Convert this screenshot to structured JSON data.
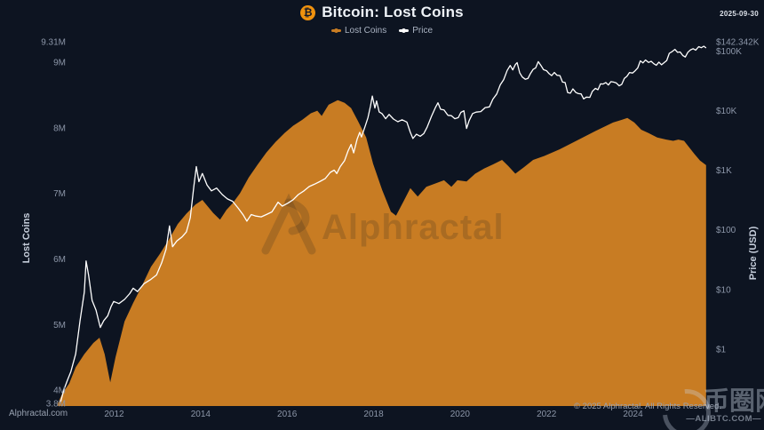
{
  "header": {
    "date": "2025-09-30",
    "bitcoin_symbol": "₿"
  },
  "watermark": {
    "text": "Alphractal"
  },
  "footer": {
    "site": "Alphractal.com",
    "copyright": "© 2025 Alphractal. All Rights Reserved.",
    "watermark_site": "—ALIBTC.COM—",
    "watermark_cn": "币圈网"
  },
  "chart_data": {
    "type": "area+line",
    "title": "Bitcoin: Lost Coins",
    "grid": false,
    "legend_position": "top-center",
    "x_axis": {
      "min": 2010.65,
      "max": 2025.9,
      "ticks": [
        {
          "v": 2012,
          "label": "2012"
        },
        {
          "v": 2014,
          "label": "2014"
        },
        {
          "v": 2016,
          "label": "2016"
        },
        {
          "v": 2018,
          "label": "2018"
        },
        {
          "v": 2020,
          "label": "2020"
        },
        {
          "v": 2022,
          "label": "2022"
        },
        {
          "v": 2024,
          "label": "2024"
        }
      ]
    },
    "left_axis": {
      "label": "Lost Coins",
      "scale": "linear",
      "unit": "millions of BTC",
      "min": 3.8,
      "max": 9.31,
      "ticks": [
        {
          "v": 9.31,
          "label": "9.31M"
        },
        {
          "v": 9,
          "label": "9M"
        },
        {
          "v": 8,
          "label": "8M"
        },
        {
          "v": 7,
          "label": "7M"
        },
        {
          "v": 6,
          "label": "6M"
        },
        {
          "v": 5,
          "label": "5M"
        },
        {
          "v": 4,
          "label": "4M"
        },
        {
          "v": 3.8,
          "label": "3.8M"
        }
      ]
    },
    "right_axis": {
      "label": "Price (USD)",
      "scale": "log",
      "min": 0.123,
      "max": 142342,
      "ticks": [
        {
          "v": 142342,
          "label": "$142.342K"
        },
        {
          "v": 100000,
          "label": "$100K"
        },
        {
          "v": 10000,
          "label": "$10K"
        },
        {
          "v": 1000,
          "label": "$1K"
        },
        {
          "v": 100,
          "label": "$100"
        },
        {
          "v": 10,
          "label": "$10"
        },
        {
          "v": 1,
          "label": "$1"
        }
      ]
    },
    "series": [
      {
        "name": "Lost Coins",
        "type": "area",
        "axis": "left",
        "color": "#c87c23",
        "points": [
          [
            2010.7,
            3.8
          ],
          [
            2010.8,
            3.95
          ],
          [
            2010.96,
            4.1
          ],
          [
            2011.11,
            4.35
          ],
          [
            2011.31,
            4.55
          ],
          [
            2011.52,
            4.72
          ],
          [
            2011.66,
            4.8
          ],
          [
            2011.78,
            4.55
          ],
          [
            2011.91,
            4.12
          ],
          [
            2012.03,
            4.5
          ],
          [
            2012.24,
            5.05
          ],
          [
            2012.44,
            5.33
          ],
          [
            2012.65,
            5.6
          ],
          [
            2012.85,
            5.88
          ],
          [
            2013.06,
            6.08
          ],
          [
            2013.26,
            6.29
          ],
          [
            2013.47,
            6.53
          ],
          [
            2013.67,
            6.69
          ],
          [
            2013.88,
            6.83
          ],
          [
            2014.04,
            6.9
          ],
          [
            2014.29,
            6.7
          ],
          [
            2014.45,
            6.6
          ],
          [
            2014.6,
            6.75
          ],
          [
            2014.74,
            6.85
          ],
          [
            2014.91,
            7.0
          ],
          [
            2015.11,
            7.24
          ],
          [
            2015.32,
            7.44
          ],
          [
            2015.52,
            7.62
          ],
          [
            2015.73,
            7.78
          ],
          [
            2015.94,
            7.92
          ],
          [
            2016.14,
            8.03
          ],
          [
            2016.35,
            8.12
          ],
          [
            2016.55,
            8.22
          ],
          [
            2016.7,
            8.26
          ],
          [
            2016.8,
            8.18
          ],
          [
            2016.96,
            8.35
          ],
          [
            2017.17,
            8.42
          ],
          [
            2017.33,
            8.38
          ],
          [
            2017.48,
            8.3
          ],
          [
            2017.64,
            8.1
          ],
          [
            2017.83,
            7.85
          ],
          [
            2017.99,
            7.45
          ],
          [
            2018.2,
            7.05
          ],
          [
            2018.4,
            6.72
          ],
          [
            2018.52,
            6.66
          ],
          [
            2018.71,
            6.9
          ],
          [
            2018.85,
            7.08
          ],
          [
            2019.02,
            6.95
          ],
          [
            2019.22,
            7.1
          ],
          [
            2019.43,
            7.15
          ],
          [
            2019.63,
            7.2
          ],
          [
            2019.8,
            7.1
          ],
          [
            2019.94,
            7.2
          ],
          [
            2020.15,
            7.18
          ],
          [
            2020.35,
            7.3
          ],
          [
            2020.56,
            7.38
          ],
          [
            2020.76,
            7.44
          ],
          [
            2020.97,
            7.51
          ],
          [
            2021.11,
            7.42
          ],
          [
            2021.28,
            7.3
          ],
          [
            2021.48,
            7.4
          ],
          [
            2021.69,
            7.51
          ],
          [
            2021.95,
            7.57
          ],
          [
            2022.3,
            7.67
          ],
          [
            2022.72,
            7.81
          ],
          [
            2023.13,
            7.95
          ],
          [
            2023.54,
            8.08
          ],
          [
            2023.74,
            8.12
          ],
          [
            2023.87,
            8.15
          ],
          [
            2024.03,
            8.08
          ],
          [
            2024.19,
            7.97
          ],
          [
            2024.36,
            7.92
          ],
          [
            2024.56,
            7.85
          ],
          [
            2024.77,
            7.82
          ],
          [
            2024.93,
            7.8
          ],
          [
            2025.05,
            7.82
          ],
          [
            2025.18,
            7.8
          ],
          [
            2025.3,
            7.7
          ],
          [
            2025.42,
            7.6
          ],
          [
            2025.55,
            7.5
          ],
          [
            2025.69,
            7.43
          ]
        ]
      },
      {
        "name": "Price",
        "type": "line",
        "axis": "right",
        "color": "#ffffff",
        "points": [
          [
            2010.76,
            0.13
          ],
          [
            2010.84,
            0.21
          ],
          [
            2010.92,
            0.3
          ],
          [
            2011.0,
            0.42
          ],
          [
            2011.11,
            0.83
          ],
          [
            2011.21,
            3.0
          ],
          [
            2011.31,
            9
          ],
          [
            2011.35,
            30
          ],
          [
            2011.41,
            17
          ],
          [
            2011.49,
            6.5
          ],
          [
            2011.58,
            4.5
          ],
          [
            2011.68,
            2.3
          ],
          [
            2011.76,
            3.0
          ],
          [
            2011.85,
            3.6
          ],
          [
            2011.93,
            5.2
          ],
          [
            2011.99,
            6.3
          ],
          [
            2012.11,
            5.8
          ],
          [
            2012.24,
            6.8
          ],
          [
            2012.36,
            8.5
          ],
          [
            2012.44,
            10.5
          ],
          [
            2012.54,
            9.2
          ],
          [
            2012.69,
            12.5
          ],
          [
            2012.85,
            14.8
          ],
          [
            2012.98,
            17.5
          ],
          [
            2013.1,
            28
          ],
          [
            2013.2,
            47
          ],
          [
            2013.28,
            116
          ],
          [
            2013.35,
            52
          ],
          [
            2013.45,
            65
          ],
          [
            2013.57,
            76
          ],
          [
            2013.67,
            92
          ],
          [
            2013.76,
            160
          ],
          [
            2013.84,
            520
          ],
          [
            2013.9,
            1150
          ],
          [
            2013.96,
            640
          ],
          [
            2014.04,
            880
          ],
          [
            2014.15,
            560
          ],
          [
            2014.25,
            450
          ],
          [
            2014.37,
            500
          ],
          [
            2014.5,
            390
          ],
          [
            2014.62,
            330
          ],
          [
            2014.74,
            300
          ],
          [
            2014.87,
            230
          ],
          [
            2014.99,
            175
          ],
          [
            2015.07,
            140
          ],
          [
            2015.17,
            180
          ],
          [
            2015.28,
            170
          ],
          [
            2015.4,
            165
          ],
          [
            2015.52,
            180
          ],
          [
            2015.65,
            200
          ],
          [
            2015.79,
            290
          ],
          [
            2015.89,
            250
          ],
          [
            2016.02,
            280
          ],
          [
            2016.14,
            320
          ],
          [
            2016.26,
            390
          ],
          [
            2016.39,
            450
          ],
          [
            2016.51,
            530
          ],
          [
            2016.63,
            580
          ],
          [
            2016.75,
            640
          ],
          [
            2016.88,
            720
          ],
          [
            2017.0,
            920
          ],
          [
            2017.09,
            1000
          ],
          [
            2017.15,
            880
          ],
          [
            2017.23,
            1150
          ],
          [
            2017.33,
            1450
          ],
          [
            2017.41,
            2100
          ],
          [
            2017.48,
            2700
          ],
          [
            2017.54,
            1950
          ],
          [
            2017.62,
            3300
          ],
          [
            2017.68,
            4300
          ],
          [
            2017.72,
            3600
          ],
          [
            2017.81,
            5600
          ],
          [
            2017.87,
            7600
          ],
          [
            2017.93,
            12000
          ],
          [
            2017.97,
            17500
          ],
          [
            2018.03,
            11000
          ],
          [
            2018.07,
            14500
          ],
          [
            2018.13,
            9500
          ],
          [
            2018.2,
            8800
          ],
          [
            2018.28,
            7300
          ],
          [
            2018.36,
            8600
          ],
          [
            2018.46,
            7200
          ],
          [
            2018.56,
            6500
          ],
          [
            2018.66,
            7000
          ],
          [
            2018.77,
            6400
          ],
          [
            2018.85,
            4300
          ],
          [
            2018.91,
            3400
          ],
          [
            2018.99,
            4000
          ],
          [
            2019.08,
            3700
          ],
          [
            2019.16,
            4100
          ],
          [
            2019.24,
            5300
          ],
          [
            2019.34,
            8000
          ],
          [
            2019.43,
            11200
          ],
          [
            2019.49,
            13500
          ],
          [
            2019.55,
            10500
          ],
          [
            2019.63,
            10200
          ],
          [
            2019.72,
            8300
          ],
          [
            2019.8,
            8200
          ],
          [
            2019.88,
            7300
          ],
          [
            2019.96,
            7600
          ],
          [
            2020.02,
            9300
          ],
          [
            2020.09,
            9900
          ],
          [
            2020.15,
            5000
          ],
          [
            2020.21,
            6800
          ],
          [
            2020.29,
            8900
          ],
          [
            2020.37,
            9400
          ],
          [
            2020.48,
            9600
          ],
          [
            2020.58,
            11200
          ],
          [
            2020.68,
            11500
          ],
          [
            2020.76,
            15500
          ],
          [
            2020.85,
            19000
          ],
          [
            2020.93,
            27000
          ],
          [
            2021.01,
            33000
          ],
          [
            2021.09,
            47000
          ],
          [
            2021.16,
            57000
          ],
          [
            2021.22,
            48000
          ],
          [
            2021.28,
            59000
          ],
          [
            2021.32,
            63500
          ],
          [
            2021.38,
            43000
          ],
          [
            2021.44,
            36500
          ],
          [
            2021.51,
            33500
          ],
          [
            2021.57,
            34500
          ],
          [
            2021.63,
            42000
          ],
          [
            2021.69,
            49000
          ],
          [
            2021.75,
            52000
          ],
          [
            2021.81,
            66000
          ],
          [
            2021.87,
            57000
          ],
          [
            2021.93,
            48500
          ],
          [
            2022.0,
            46500
          ],
          [
            2022.06,
            41500
          ],
          [
            2022.12,
            38500
          ],
          [
            2022.18,
            43500
          ],
          [
            2022.24,
            39000
          ],
          [
            2022.31,
            38500
          ],
          [
            2022.37,
            30000
          ],
          [
            2022.43,
            29500
          ],
          [
            2022.49,
            20000
          ],
          [
            2022.55,
            19500
          ],
          [
            2022.61,
            23000
          ],
          [
            2022.68,
            20000
          ],
          [
            2022.74,
            19200
          ],
          [
            2022.8,
            19000
          ],
          [
            2022.86,
            15700
          ],
          [
            2022.92,
            16800
          ],
          [
            2023.0,
            16600
          ],
          [
            2023.06,
            21000
          ],
          [
            2023.13,
            23500
          ],
          [
            2023.19,
            22300
          ],
          [
            2023.25,
            28000
          ],
          [
            2023.31,
            27800
          ],
          [
            2023.37,
            29500
          ],
          [
            2023.43,
            26800
          ],
          [
            2023.49,
            30500
          ],
          [
            2023.55,
            30000
          ],
          [
            2023.61,
            29200
          ],
          [
            2023.68,
            26000
          ],
          [
            2023.74,
            27500
          ],
          [
            2023.8,
            34500
          ],
          [
            2023.86,
            37500
          ],
          [
            2023.92,
            43500
          ],
          [
            2023.99,
            42500
          ],
          [
            2024.05,
            46500
          ],
          [
            2024.11,
            52000
          ],
          [
            2024.17,
            68000
          ],
          [
            2024.23,
            63000
          ],
          [
            2024.29,
            70500
          ],
          [
            2024.36,
            64000
          ],
          [
            2024.42,
            67000
          ],
          [
            2024.48,
            61000
          ],
          [
            2024.54,
            57500
          ],
          [
            2024.6,
            65000
          ],
          [
            2024.66,
            58500
          ],
          [
            2024.72,
            63500
          ],
          [
            2024.78,
            69000
          ],
          [
            2024.84,
            91000
          ],
          [
            2024.91,
            98000
          ],
          [
            2024.97,
            106000
          ],
          [
            2025.03,
            94500
          ],
          [
            2025.09,
            96000
          ],
          [
            2025.15,
            84000
          ],
          [
            2025.21,
            79000
          ],
          [
            2025.27,
            95000
          ],
          [
            2025.33,
            104000
          ],
          [
            2025.39,
            109000
          ],
          [
            2025.45,
            103000
          ],
          [
            2025.52,
            118000
          ],
          [
            2025.58,
            113000
          ],
          [
            2025.64,
            120000
          ],
          [
            2025.69,
            112000
          ]
        ]
      }
    ]
  }
}
